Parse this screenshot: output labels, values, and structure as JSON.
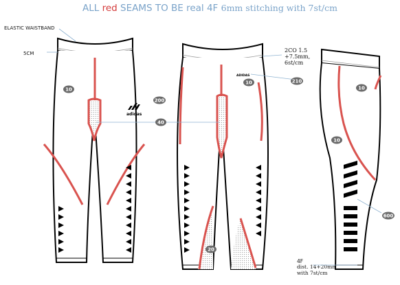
{
  "title": {
    "part1": "ALL ",
    "red_word": "red",
    "part2": " SEAMS TO BE real 4F ",
    "part3": "6mm stitching with 7st/cm"
  },
  "labels": {
    "elastic_waistband": "ELASTIC WAISTBAND",
    "five_cm": "5CM",
    "coverstitch_line1": "2CO 1.5",
    "coverstitch_line2": "+7.5mm,",
    "coverstitch_line3": "6st/cm",
    "flatlock_line1": "4F",
    "flatlock_line2": "dist. 14+20mm 6mm",
    "flatlock_line3": "with 7st/cm",
    "brand": "adidas",
    "tag": "ADIDAS"
  },
  "badges": {
    "front_10": "10",
    "logo_200": "200",
    "gusset_40": "40",
    "back_10": "10",
    "tag_210": "210",
    "side_10_upper": "10",
    "side_10_lower": "10",
    "side_600": "600",
    "calf_20": "20"
  },
  "colors": {
    "seam_red": "#d9534f",
    "title_blue": "#7aa3c9",
    "badge_grey": "#6a6a6a",
    "callout_line": "#8fb3d1"
  }
}
